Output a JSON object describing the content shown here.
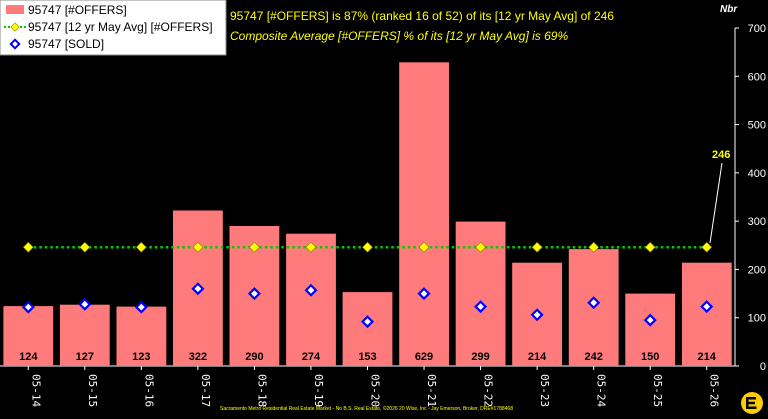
{
  "chart_data": {
    "type": "bar",
    "categories": [
      "05-14",
      "05-15",
      "05-16",
      "05-17",
      "05-18",
      "05-19",
      "05-20",
      "05-21",
      "05-22",
      "05-23",
      "05-24",
      "05-25",
      "05-26"
    ],
    "series": [
      {
        "name": "95747 [#OFFERS]",
        "kind": "bar",
        "color": "#ff7b7b",
        "values": [
          124,
          127,
          123,
          322,
          290,
          274,
          153,
          629,
          299,
          214,
          242,
          150,
          214
        ]
      },
      {
        "name": "95747 [12 yr May Avg] [#OFFERS]",
        "kind": "line",
        "color": "#00cc00",
        "marker_color": "#ffff00",
        "values": [
          246,
          246,
          246,
          246,
          246,
          246,
          246,
          246,
          246,
          246,
          246,
          246,
          246
        ]
      },
      {
        "name": "95747 [SOLD]",
        "kind": "scatter",
        "color": "#0000ff",
        "values": [
          122,
          128,
          122,
          160,
          150,
          157,
          92,
          150,
          123,
          106,
          131,
          95,
          123
        ]
      }
    ],
    "ylabel": "Nbr",
    "ylim": [
      0,
      700
    ],
    "yticks": [
      0,
      100,
      200,
      300,
      400,
      500,
      600,
      700
    ],
    "y_axis_side": "right",
    "grid": false,
    "legend_placement": "top-left",
    "avg_callout": "246",
    "summary_line_1": "95747 [#OFFERS] is 87% (ranked 16 of 52) of its [12 yr May Avg] of 246",
    "summary_line_2": "Composite Average [#OFFERS] % of its [12 yr May Avg] is 69%",
    "footer": "Sacramento Metro Residential Real Estate Market - No B.S. Real Estate, ©2026 20 Wise, Inc - Jay Emerson, Broker, DRE#1788468"
  }
}
